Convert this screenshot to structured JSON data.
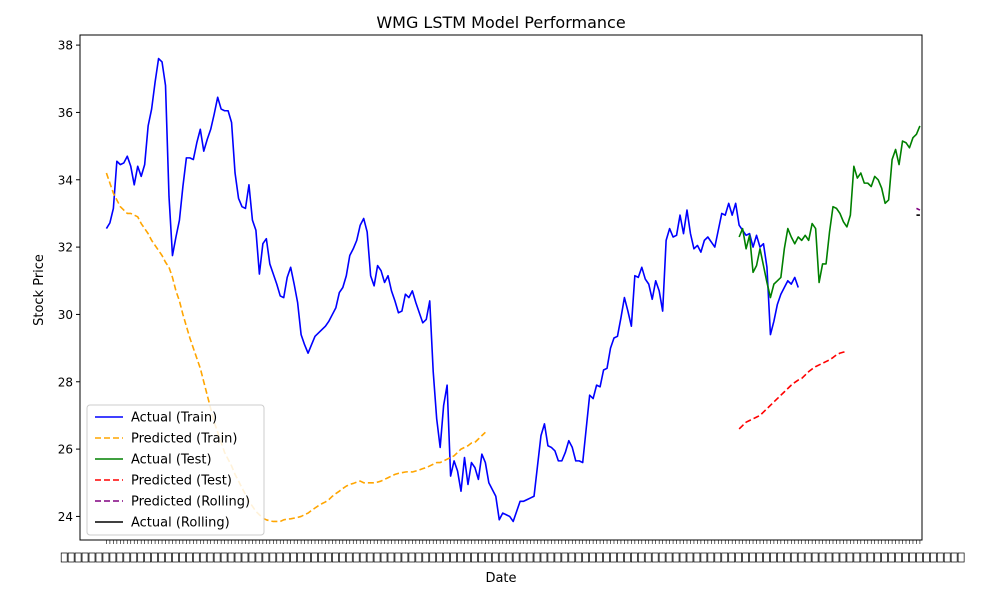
{
  "chart_data": {
    "type": "line",
    "title": "WMG LSTM Model Performance",
    "xlabel": "Date",
    "ylabel": "Stock Price",
    "ylim": [
      23.3,
      38.3
    ],
    "xlim": [
      -7.6,
      234.6
    ],
    "yticks": [
      24,
      26,
      28,
      30,
      32,
      34,
      36,
      38
    ],
    "grid": false,
    "legend": "lower-left",
    "colors": {
      "train_actual": "#0000ff",
      "train_pred": "#ffa500",
      "test_actual": "#008000",
      "test_pred": "#ff0000",
      "roll_pred": "#800080",
      "roll_actual": "#000000"
    },
    "series": [
      {
        "name": "Actual (Train)",
        "style": "solid",
        "color": "#0000ff",
        "x_start": 0,
        "values": [
          32.55,
          32.72,
          33.15,
          34.55,
          34.45,
          34.5,
          34.7,
          34.4,
          33.85,
          34.4,
          34.1,
          34.45,
          35.6,
          36.1,
          36.9,
          37.6,
          37.5,
          36.8,
          33.5,
          31.75,
          32.3,
          32.8,
          33.8,
          34.65,
          34.65,
          34.6,
          35.1,
          35.5,
          34.85,
          35.2,
          35.5,
          35.95,
          36.45,
          36.1,
          36.05,
          36.05,
          35.7,
          34.2,
          33.45,
          33.2,
          33.15,
          33.85,
          32.8,
          32.5,
          31.2,
          32.1,
          32.25,
          31.5,
          31.2,
          30.9,
          30.55,
          30.5,
          31.1,
          31.4,
          30.9,
          30.35,
          29.4,
          29.1,
          28.85,
          29.1,
          29.35,
          29.45,
          29.55,
          29.65,
          29.8,
          30.0,
          30.2,
          30.65,
          30.8,
          31.15,
          31.75,
          31.95,
          32.2,
          32.65,
          32.85,
          32.45,
          31.15,
          30.85,
          31.45,
          31.3,
          30.95,
          31.15,
          30.7,
          30.4,
          30.05,
          30.1,
          30.6,
          30.5,
          30.7,
          30.35,
          30.05,
          29.75,
          29.85,
          30.4,
          28.3,
          26.9,
          26.05,
          27.3,
          27.9,
          25.2,
          25.65,
          25.35,
          24.75,
          25.75,
          24.95,
          25.6,
          25.45,
          25.1,
          25.85,
          25.6,
          25.0,
          24.8,
          24.6,
          23.9,
          24.1,
          24.05,
          24.0,
          23.85,
          24.15,
          24.45,
          24.45,
          24.5,
          24.55,
          24.6,
          25.5,
          26.4,
          26.75,
          26.1,
          26.05,
          25.95,
          25.65,
          25.65,
          25.9,
          26.25,
          26.05,
          25.65,
          25.65,
          25.6,
          26.6,
          27.6,
          27.5,
          27.9,
          27.85,
          28.35,
          28.4,
          29.0,
          29.3,
          29.35,
          29.9,
          30.5,
          30.1,
          29.65,
          31.15,
          31.1,
          31.4,
          31.05,
          30.9,
          30.45,
          31.0,
          30.7,
          30.1,
          32.2,
          32.55,
          32.3,
          32.35,
          32.95,
          32.4,
          33.1,
          32.4,
          31.95,
          32.05,
          31.85,
          32.2,
          32.3,
          32.15,
          32.0,
          32.5,
          33.0,
          32.95,
          33.3,
          32.95,
          33.3,
          32.65,
          32.5,
          32.35,
          32.4,
          32.0,
          32.35,
          32.0,
          32.1,
          31.4,
          29.4,
          29.8,
          30.3,
          30.6,
          30.8,
          31.0,
          30.9,
          31.1,
          30.8
        ]
      },
      {
        "name": "Predicted (Train)",
        "style": "dashed",
        "color": "#ffa500",
        "x_start": 0,
        "values": [
          34.2,
          33.9,
          33.6,
          33.4,
          33.2,
          33.1,
          33.0,
          33.0,
          32.95,
          32.9,
          32.7,
          32.55,
          32.4,
          32.2,
          32.05,
          31.9,
          31.75,
          31.55,
          31.4,
          31.1,
          30.7,
          30.4,
          30.0,
          29.65,
          29.3,
          29.0,
          28.7,
          28.4,
          28.0,
          27.6,
          27.2,
          26.8,
          26.5,
          26.2,
          25.9,
          25.7,
          25.5,
          25.25,
          25.05,
          24.85,
          24.65,
          24.45,
          24.3,
          24.15,
          24.05,
          23.95,
          23.9,
          23.87,
          23.85,
          23.85,
          23.85,
          23.9,
          23.92,
          23.93,
          23.95,
          23.97,
          24.0,
          24.05,
          24.1,
          24.18,
          24.25,
          24.32,
          24.38,
          24.43,
          24.5,
          24.6,
          24.68,
          24.75,
          24.83,
          24.9,
          24.95,
          24.98,
          25.02,
          25.05,
          25.0,
          25.0,
          25.0,
          25.0,
          25.02,
          25.05,
          25.1,
          25.15,
          25.2,
          25.25,
          25.28,
          25.3,
          25.32,
          25.33,
          25.32,
          25.35,
          25.38,
          25.42,
          25.45,
          25.5,
          25.55,
          25.6,
          25.6,
          25.65,
          25.7,
          25.75,
          25.8,
          25.9,
          26.0,
          26.05,
          26.1,
          26.18,
          26.2,
          26.3,
          26.4,
          26.5
        ]
      },
      {
        "name": "Actual (Test)",
        "style": "solid",
        "color": "#008000",
        "x_start": 182,
        "values": [
          32.3,
          32.55,
          31.95,
          32.35,
          31.25,
          31.45,
          31.95,
          31.45,
          30.95,
          30.5,
          30.9,
          31.0,
          31.1,
          31.95,
          32.55,
          32.3,
          32.1,
          32.3,
          32.2,
          32.35,
          32.2,
          32.7,
          32.55,
          30.95,
          31.5,
          31.5,
          32.45,
          33.2,
          33.15,
          33.0,
          32.75,
          32.6,
          32.95,
          34.4,
          34.05,
          34.2,
          33.9,
          33.9,
          33.8,
          34.1,
          34.0,
          33.75,
          33.3,
          33.4,
          34.6,
          34.9,
          34.45,
          35.15,
          35.1,
          34.95,
          35.25,
          35.35,
          35.6
        ]
      },
      {
        "name": "Predicted (Test)",
        "style": "dashed",
        "color": "#ff0000",
        "x_start": 182,
        "values": [
          26.6,
          26.7,
          26.8,
          26.85,
          26.9,
          26.95,
          27.0,
          27.1,
          27.2,
          27.3,
          27.4,
          27.5,
          27.6,
          27.7,
          27.8,
          27.9,
          27.98,
          28.05,
          28.1,
          28.2,
          28.3,
          28.38,
          28.45,
          28.5,
          28.55,
          28.6,
          28.65,
          28.72,
          28.8,
          28.85,
          28.88,
          28.9
        ]
      },
      {
        "name": "Predicted (Rolling)",
        "style": "dashed",
        "color": "#800080",
        "x_start": 233,
        "values": [
          33.15,
          33.1
        ]
      },
      {
        "name": "Actual (Rolling)",
        "style": "solid",
        "color": "#000000",
        "x_start": 233,
        "values": [
          32.95,
          32.95
        ]
      }
    ]
  }
}
